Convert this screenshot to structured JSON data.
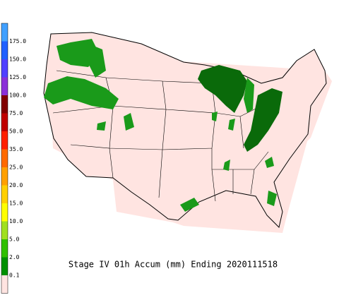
{
  "title": "Stage IV 01h Accum (mm) Ending 2020111518",
  "legend": {
    "labels": [
      "175.0",
      "150.0",
      "125.0",
      "100.0",
      "75.0",
      "50.0",
      "35.0",
      "25.0",
      "20.0",
      "15.0",
      "10.0",
      "5.0",
      "2.0",
      "0.1"
    ],
    "colors": [
      "#40a0ff",
      "#2060ff",
      "#5040ff",
      "#8a30d8",
      "#800000",
      "#c00000",
      "#ff2000",
      "#ff6a00",
      "#ffa000",
      "#ffd000",
      "#ffff00",
      "#a0e020",
      "#30c000",
      "#009000",
      "#ffe4e1"
    ]
  }
}
